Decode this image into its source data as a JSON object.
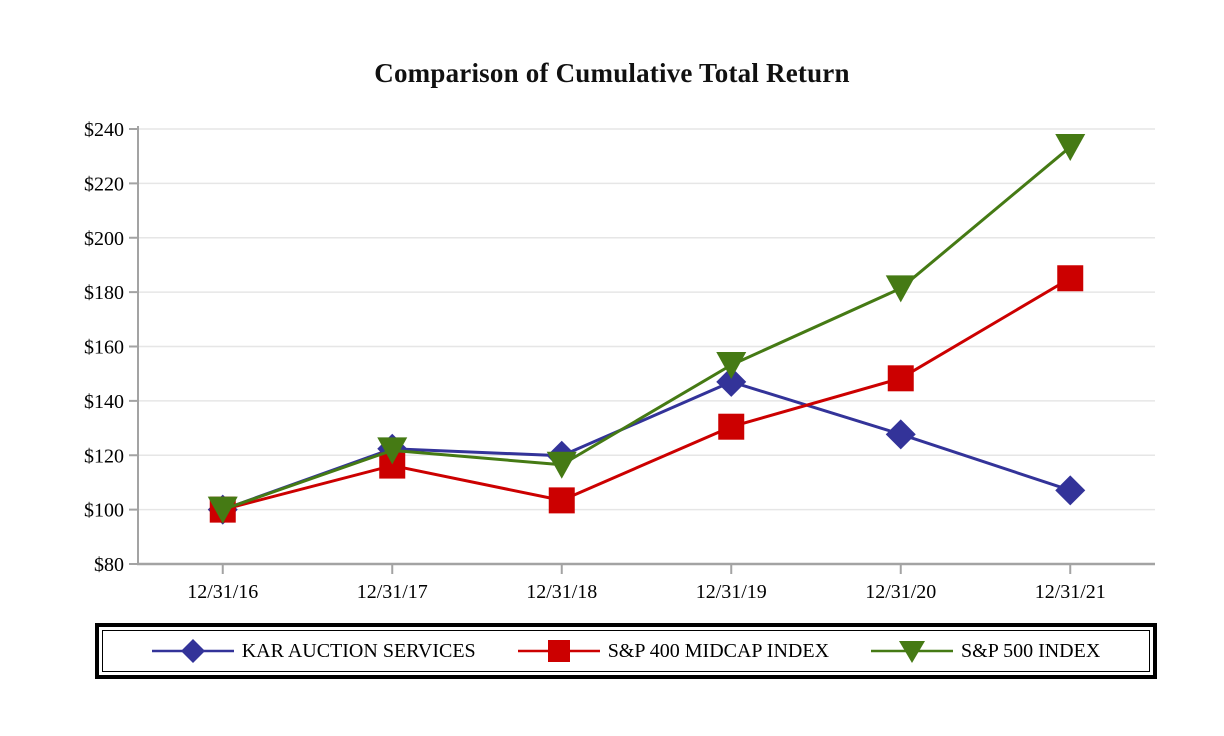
{
  "chart_data": {
    "type": "line",
    "title": "Comparison of Cumulative Total Return",
    "xlabel": "",
    "ylabel": "",
    "categories": [
      "12/31/16",
      "12/31/17",
      "12/31/18",
      "12/31/19",
      "12/31/20",
      "12/31/21"
    ],
    "series": [
      {
        "name": "KAR AUCTION SERVICES",
        "marker": "diamond",
        "color": "#333399",
        "values": [
          100.0,
          122.4,
          119.8,
          147.0,
          127.7,
          107.1
        ]
      },
      {
        "name": "S&P 400 MIDCAP INDEX",
        "marker": "square",
        "color": "#cc0000",
        "values": [
          100.0,
          116.2,
          103.4,
          130.5,
          148.3,
          185.1
        ]
      },
      {
        "name": "S&P 500 INDEX",
        "marker": "triangle-down",
        "color": "#457a14",
        "values": [
          100.0,
          121.8,
          116.5,
          153.2,
          181.4,
          233.4
        ]
      }
    ],
    "ylim": [
      80,
      240
    ],
    "y_tick_step": 20,
    "y_tick_labels": [
      "$80",
      "$100",
      "$120",
      "$140",
      "$160",
      "$180",
      "$200",
      "$220",
      "$240"
    ],
    "grid": true,
    "gridline_color": "#e6e6e6",
    "axis_color": "#a3a3a3",
    "tick_label_color": "#000000",
    "legend_position": "bottom",
    "legend_border_color": "#000000"
  }
}
